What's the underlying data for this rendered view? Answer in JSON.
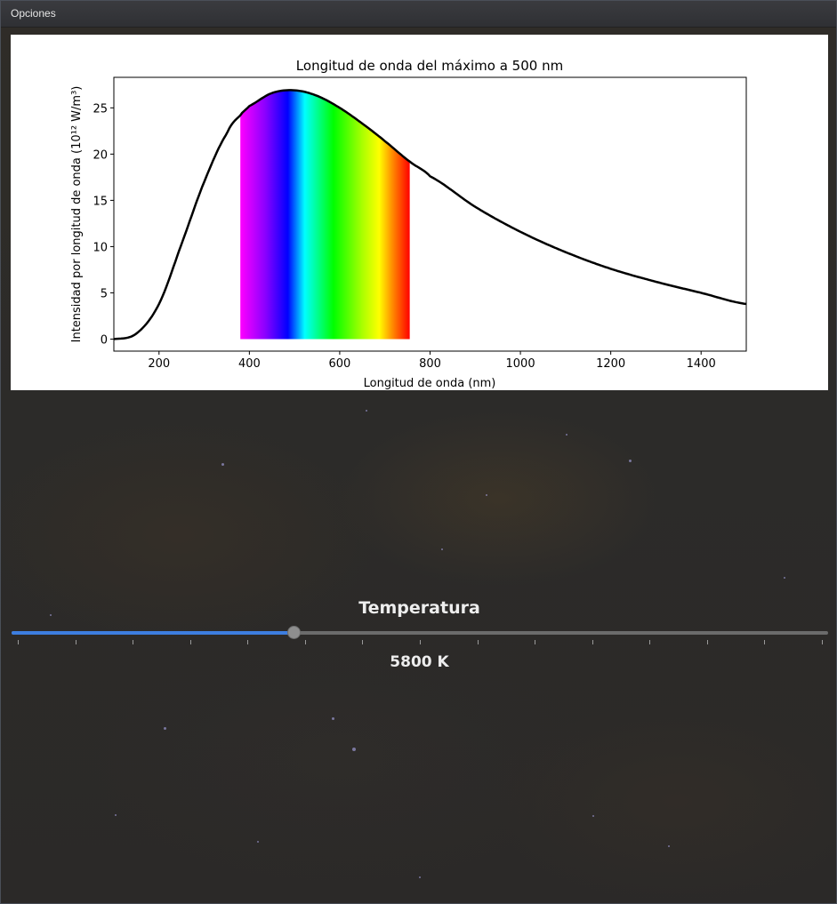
{
  "window": {
    "title": "Opciones"
  },
  "controls": {
    "temperature_label": "Temperatura",
    "temperature_value_text": "5800 K",
    "slider_fraction": 0.345,
    "slider_tick_count": 15,
    "accent_color": "#3d7ee0"
  },
  "chart_data": {
    "type": "line",
    "title": "Longitud de onda del máximo a 500 nm",
    "xlabel": "Longitud de onda (nm)",
    "ylabel": "Intensidad por longitud de onda (10¹² W/m³)",
    "xlim": [
      100,
      1500
    ],
    "ylim": [
      -1.3,
      28.3
    ],
    "xticks": [
      200,
      400,
      600,
      800,
      1000,
      1200,
      1400
    ],
    "yticks": [
      0,
      5,
      10,
      15,
      20,
      25
    ],
    "series": [
      {
        "color": "#000000",
        "x": [
          100,
          150,
          200,
          250,
          300,
          350,
          380,
          400,
          450,
          500,
          550,
          600,
          650,
          700,
          755,
          800,
          900,
          1000,
          1100,
          1200,
          1300,
          1400,
          1500
        ],
        "y": [
          0.0,
          0.6,
          3.8,
          10.3,
          17.0,
          22.2,
          24.2,
          25.2,
          26.6,
          26.9,
          26.3,
          25.0,
          23.3,
          21.4,
          19.2,
          17.6,
          14.3,
          11.6,
          9.4,
          7.6,
          6.2,
          5.0,
          3.8
        ]
      }
    ],
    "visible_band_nm": [
      380,
      755
    ],
    "grid": false,
    "legend": "none"
  }
}
